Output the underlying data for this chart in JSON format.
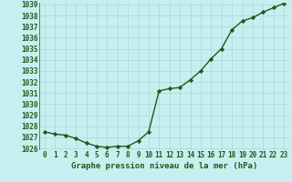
{
  "x": [
    0,
    1,
    2,
    3,
    4,
    5,
    6,
    7,
    8,
    9,
    10,
    11,
    12,
    13,
    14,
    15,
    16,
    17,
    18,
    19,
    20,
    21,
    22,
    23
  ],
  "y": [
    1027.5,
    1027.3,
    1027.2,
    1026.9,
    1026.5,
    1026.2,
    1026.1,
    1026.2,
    1026.2,
    1026.7,
    1027.5,
    1031.2,
    1031.4,
    1031.5,
    1032.2,
    1033.0,
    1034.1,
    1035.0,
    1036.7,
    1037.5,
    1037.8,
    1038.3,
    1038.7,
    1039.1
  ],
  "ylim": [
    1026,
    1039
  ],
  "xlim": [
    -0.5,
    23.5
  ],
  "yticks": [
    1026,
    1027,
    1028,
    1029,
    1030,
    1031,
    1032,
    1033,
    1034,
    1035,
    1036,
    1037,
    1038,
    1039
  ],
  "xticks": [
    0,
    1,
    2,
    3,
    4,
    5,
    6,
    7,
    8,
    9,
    10,
    11,
    12,
    13,
    14,
    15,
    16,
    17,
    18,
    19,
    20,
    21,
    22,
    23
  ],
  "line_color": "#1a5c1a",
  "marker": "D",
  "marker_size": 2.2,
  "bg_color": "#c8eff0",
  "grid_color": "#a8d8d8",
  "xlabel": "Graphe pression niveau de la mer (hPa)",
  "xlabel_color": "#1a5c1a",
  "tick_color": "#1a5c1a",
  "tick_fontsize": 5.5,
  "xlabel_fontsize": 6.5,
  "linewidth": 1.0
}
